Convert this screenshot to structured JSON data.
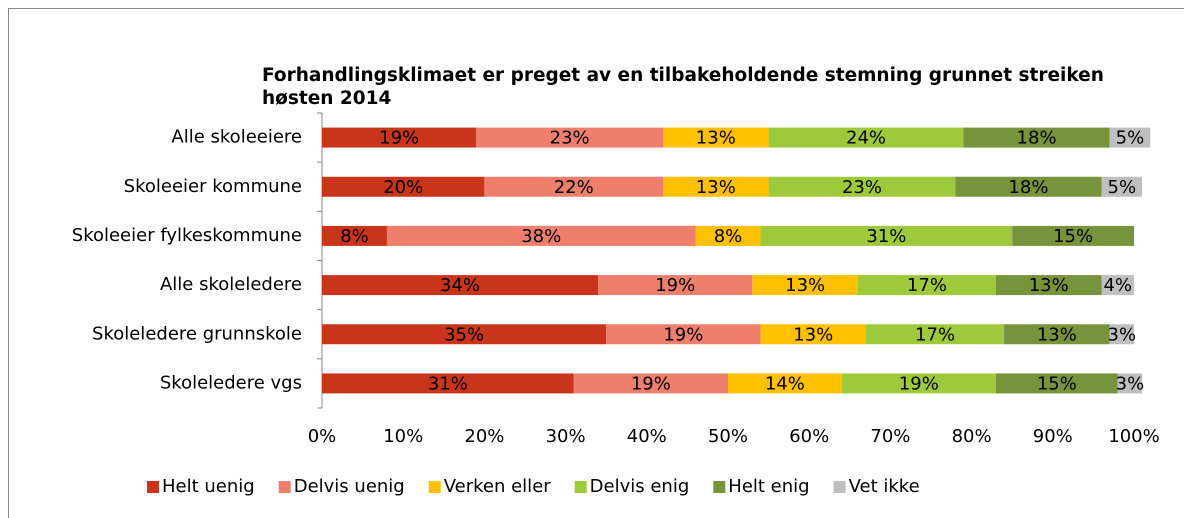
{
  "chart_data": {
    "type": "stacked-bar-horizontal",
    "title": "Forhandlingsklimaet er preget av en tilbakeholdende stemning grunnet streiken høsten 2014",
    "categories": [
      "Alle skoleeiere",
      "Skoleeier kommune",
      "Skoleeier fylkeskommune",
      "Alle skoleledere",
      "Skoleledere grunnskole",
      "Skoleledere vgs"
    ],
    "series": [
      {
        "name": "Helt uenig",
        "color": "#c9351b",
        "values": [
          19,
          20,
          8,
          34,
          35,
          31
        ],
        "value_labels": [
          "19%",
          "20%",
          "8%",
          "34%",
          "35%",
          "31%"
        ]
      },
      {
        "name": "Delvis uenig",
        "color": "#ee7f6c",
        "values": [
          23,
          22,
          38,
          19,
          19,
          19
        ],
        "value_labels": [
          "23%",
          "22%",
          "38%",
          "19%",
          "19%",
          "19%"
        ]
      },
      {
        "name": "Verken eller",
        "color": "#ffc000",
        "values": [
          13,
          13,
          8,
          13,
          13,
          14
        ],
        "value_labels": [
          "13%",
          "13%",
          "8%",
          "13%",
          "13%",
          "14%"
        ]
      },
      {
        "name": "Delvis enig",
        "color": "#9fc93c",
        "values": [
          24,
          23,
          31,
          17,
          17,
          19
        ],
        "value_labels": [
          "24%",
          "23%",
          "31%",
          "17%",
          "17%",
          "19%"
        ]
      },
      {
        "name": "Helt enig",
        "color": "#77933c",
        "values": [
          18,
          18,
          15,
          13,
          13,
          15
        ],
        "value_labels": [
          "18%",
          "18%",
          "15%",
          "13%",
          "13%",
          "15%"
        ]
      },
      {
        "name": "Vet ikke",
        "color": "#bfbfbf",
        "values": [
          5,
          5,
          null,
          4,
          3,
          3
        ],
        "value_labels": [
          "5%",
          "5%",
          null,
          "4%",
          "3%",
          "3%"
        ]
      }
    ],
    "xlim": [
      0,
      100
    ],
    "xticks": [
      {
        "value": 0,
        "label": "0%"
      },
      {
        "value": 10,
        "label": "10%"
      },
      {
        "value": 20,
        "label": "20%"
      },
      {
        "value": 30,
        "label": "30%"
      },
      {
        "value": 40,
        "label": "40%"
      },
      {
        "value": 50,
        "label": "50%"
      },
      {
        "value": 60,
        "label": "60%"
      },
      {
        "value": 70,
        "label": "70%"
      },
      {
        "value": 80,
        "label": "80%"
      },
      {
        "value": 90,
        "label": "90%"
      },
      {
        "value": 100,
        "label": "100%"
      }
    ],
    "legend": "bottom"
  }
}
